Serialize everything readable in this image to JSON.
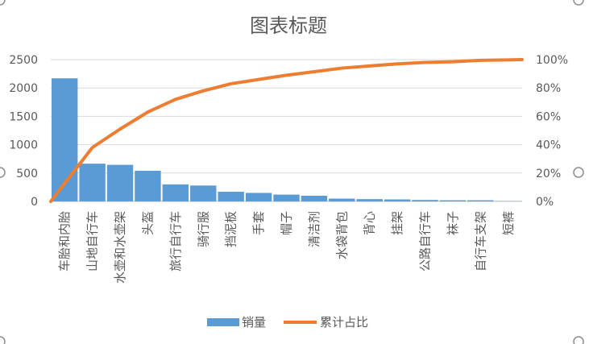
{
  "chart_data": {
    "type": "bar",
    "title": "图表标题",
    "categories": [
      "车胎和内胎",
      "山地自行车",
      "水壶和水壶架",
      "头盔",
      "旅行自行车",
      "骑行服",
      "挡泥板",
      "手套",
      "帽子",
      "清洁剂",
      "水袋背包",
      "背心",
      "挂架",
      "公路自行车",
      "袜子",
      "自行车支架",
      "短裤"
    ],
    "series": [
      {
        "name": "销量",
        "type": "bar",
        "axis": "left",
        "color": "#5B9BD5",
        "values": [
          2170,
          665,
          645,
          540,
          300,
          280,
          170,
          150,
          120,
          100,
          50,
          40,
          35,
          25,
          20,
          20,
          5
        ]
      },
      {
        "name": "累计占比",
        "type": "line",
        "axis": "right",
        "color": "#ED7D31",
        "values": [
          0.0,
          0.38,
          0.51,
          0.63,
          0.72,
          0.78,
          0.83,
          0.86,
          0.89,
          0.915,
          0.94,
          0.955,
          0.97,
          0.98,
          0.985,
          0.995,
          1.0
        ]
      }
    ],
    "y_left": {
      "ylim": [
        0,
        2500
      ],
      "ticks": [
        "0",
        "500",
        "1000",
        "1500",
        "2000",
        "2500"
      ]
    },
    "y_right": {
      "ylim": [
        0,
        1
      ],
      "ticks": [
        "0%",
        "20%",
        "40%",
        "60%",
        "80%",
        "100%"
      ]
    },
    "grid": true,
    "legend": "bottom"
  }
}
